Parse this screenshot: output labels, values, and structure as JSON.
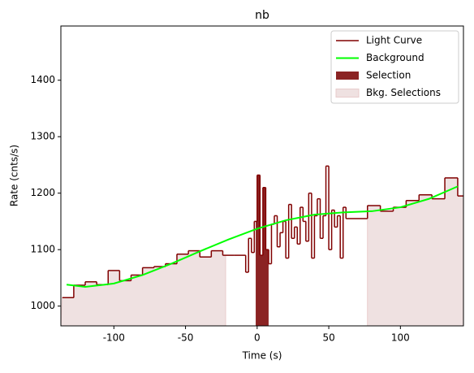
{
  "chart_data": {
    "type": "lightcurve",
    "title": "nb",
    "x_label": "Time (s)",
    "y_label": "Rate (cnts/s)",
    "xlim": [
      -137,
      144
    ],
    "ylim": [
      965,
      1496
    ],
    "xticks": [
      -100,
      -50,
      0,
      50,
      100
    ],
    "yticks": [
      1000,
      1100,
      1200,
      1300,
      1400
    ],
    "legend": "upper right",
    "light_curve": {
      "name": "Light Curve",
      "color": "#800000",
      "bins": [
        -136,
        -128,
        -120,
        -112,
        -104,
        -96,
        -88,
        -80,
        -72,
        -64,
        -56,
        -48,
        -40,
        -32,
        -24,
        -16,
        -8,
        -6,
        -4,
        -2,
        0,
        2,
        4,
        6,
        8,
        10,
        12,
        14,
        16,
        18,
        20,
        22,
        24,
        26,
        28,
        30,
        32,
        34,
        36,
        38,
        40,
        42,
        44,
        46,
        48,
        50,
        52,
        54,
        56,
        58,
        60,
        62,
        77,
        86,
        95,
        104,
        113,
        122,
        131,
        140,
        149
      ],
      "values": [
        1015,
        1037,
        1043,
        1038,
        1063,
        1045,
        1055,
        1068,
        1070,
        1075,
        1092,
        1098,
        1087,
        1098,
        1090,
        1090,
        1060,
        1120,
        1095,
        1150,
        1232,
        1090,
        1210,
        1100,
        1075,
        1145,
        1160,
        1105,
        1130,
        1150,
        1085,
        1180,
        1120,
        1140,
        1110,
        1175,
        1150,
        1115,
        1200,
        1085,
        1160,
        1190,
        1120,
        1160,
        1248,
        1100,
        1170,
        1140,
        1160,
        1085,
        1175,
        1155,
        1178,
        1168,
        1175,
        1187,
        1197,
        1190,
        1227,
        1195
      ]
    },
    "background": {
      "name": "Background",
      "color": "#00ff00",
      "x": [
        -133,
        -120,
        -100,
        -80,
        -60,
        -40,
        -20,
        0,
        20,
        40,
        60,
        80,
        100,
        120,
        140
      ],
      "values": [
        1038,
        1034,
        1040,
        1055,
        1075,
        1097,
        1118,
        1137,
        1152,
        1162,
        1166,
        1168,
        1175,
        1190,
        1212
      ]
    },
    "selection": {
      "name": "Selection",
      "color": "#8b2323",
      "range": [
        -1,
        8
      ]
    },
    "bkg_selections": {
      "name": "Bkg. Selections",
      "color": "#efe1e1",
      "ranges": [
        [
          -137,
          -22
        ],
        [
          77,
          144
        ]
      ]
    }
  }
}
